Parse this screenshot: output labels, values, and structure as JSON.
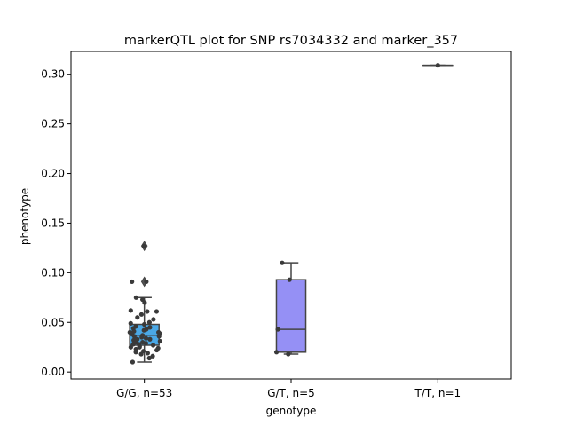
{
  "chart_data": {
    "type": "box",
    "title": "markerQTL plot for SNP rs7034332 and marker_357",
    "xlabel": "genotype",
    "ylabel": "phenotype",
    "ylim": [
      -0.007,
      0.323
    ],
    "yticks": [
      0.0,
      0.05,
      0.1,
      0.15,
      0.2,
      0.25,
      0.3
    ],
    "ytick_labels": [
      "0.00",
      "0.05",
      "0.10",
      "0.15",
      "0.20",
      "0.25",
      "0.30"
    ],
    "grid": false,
    "legend": "none",
    "categories": [
      "G/G, n=53",
      "G/T, n=5",
      "T/T, n=1"
    ],
    "boxes": [
      {
        "category": "G/G, n=53",
        "color": "#4aa8e6",
        "q1": 0.027,
        "median": 0.037,
        "q3": 0.048,
        "whisker_low": 0.01,
        "whisker_high": 0.075,
        "outliers": [
          0.091,
          0.127
        ]
      },
      {
        "category": "G/T, n=5",
        "color": "#9590f5",
        "q1": 0.02,
        "median": 0.043,
        "q3": 0.093,
        "whisker_low": 0.018,
        "whisker_high": 0.11,
        "outliers": []
      },
      {
        "category": "T/T, n=1",
        "color": "#d98ae6",
        "q1": 0.309,
        "median": 0.309,
        "q3": 0.309,
        "whisker_low": 0.309,
        "whisker_high": 0.309,
        "outliers": []
      }
    ],
    "points": [
      {
        "category": "G/G, n=53",
        "values": [
          0.127,
          0.091,
          0.091,
          0.075,
          0.073,
          0.07,
          0.062,
          0.061,
          0.061,
          0.058,
          0.055,
          0.053,
          0.05,
          0.049,
          0.048,
          0.046,
          0.045,
          0.044,
          0.043,
          0.042,
          0.041,
          0.04,
          0.04,
          0.039,
          0.038,
          0.037,
          0.036,
          0.036,
          0.035,
          0.034,
          0.033,
          0.033,
          0.032,
          0.031,
          0.03,
          0.03,
          0.029,
          0.028,
          0.028,
          0.027,
          0.026,
          0.025,
          0.025,
          0.024,
          0.023,
          0.022,
          0.021,
          0.02,
          0.019,
          0.018,
          0.016,
          0.014,
          0.01
        ]
      },
      {
        "category": "G/T, n=5",
        "values": [
          0.11,
          0.093,
          0.043,
          0.02,
          0.018
        ]
      },
      {
        "category": "T/T, n=1",
        "values": [
          0.309
        ]
      }
    ],
    "point_color": "#3a3a3a",
    "line_color": "#444444"
  }
}
